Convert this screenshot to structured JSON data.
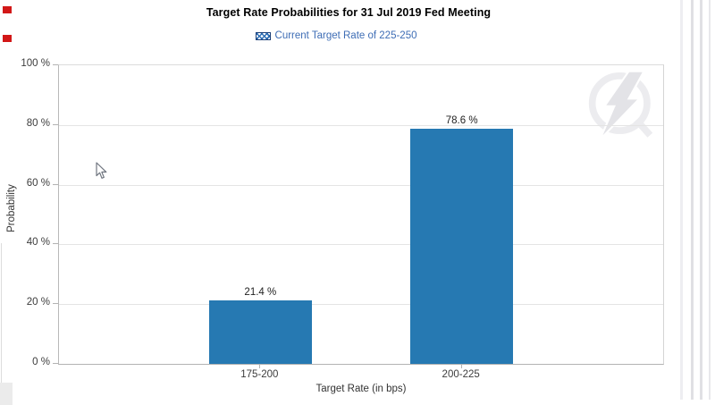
{
  "chart_data": {
    "type": "bar",
    "title": "Target Rate Probabilities for 31 Jul 2019 Fed Meeting",
    "legend": {
      "label": "Current Target Rate of 225-250",
      "position": "top-center",
      "swatch_icon": "crosshatch-swatch-icon"
    },
    "categories": [
      "175-200",
      "200-225"
    ],
    "values": [
      21.4,
      78.6
    ],
    "value_labels": [
      "21.4 %",
      "78.6 %"
    ],
    "xlabel": "Target Rate (in bps)",
    "ylabel": "Probability",
    "ylim": [
      0,
      100
    ],
    "yticks": [
      0,
      20,
      40,
      60,
      80,
      100
    ],
    "ytick_labels": [
      "0 %",
      "20 %",
      "40 %",
      "60 %",
      "80 %",
      "100 %"
    ],
    "grid": true,
    "legend_position": "top",
    "colors": {
      "bar": "#2679b2",
      "legend_text": "#3e6db5",
      "grid": "#e4e4e4",
      "axis": "#b3b3b3",
      "title": "#000000",
      "tick_text": "#3c3c3c"
    }
  },
  "decorations": {
    "watermark_icon": "quikstrike-lightning-logo",
    "cursor_icon": "arrow-pointer-cursor",
    "red_marker_color": "#d21717",
    "scrollbar_present": true
  }
}
